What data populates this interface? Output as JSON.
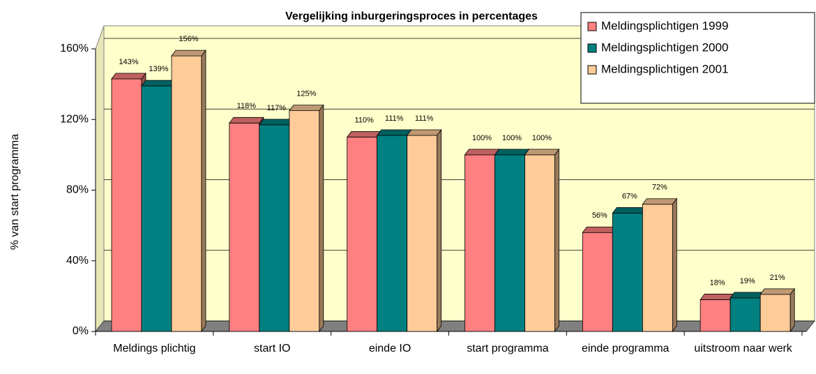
{
  "chart_data": {
    "type": "bar3d",
    "title": "Vergelijking inburgeringsproces in percentages",
    "y_label": "% van start programma",
    "categories": [
      "Meldings plichtig",
      "start IO",
      "einde IO",
      "start programma",
      "einde programma",
      "uitstroom naar werk"
    ],
    "series": [
      {
        "name": "Meldingsplichtigen 1999",
        "color": "#ff8080",
        "values": [
          143,
          118,
          110,
          100,
          56,
          18
        ],
        "value_labels": [
          "143%",
          "118%",
          "110%",
          "100%",
          "56%",
          "18%"
        ]
      },
      {
        "name": "Meldingsplichtigen 2000",
        "color": "#008080",
        "values": [
          139,
          117,
          111,
          100,
          67,
          19
        ],
        "value_labels": [
          "139%",
          "117%",
          "111%",
          "100%",
          "67%",
          "19%"
        ]
      },
      {
        "name": "Meldingsplichtigen 2001",
        "color": "#ffcc99",
        "values": [
          156,
          125,
          111,
          100,
          72,
          21
        ],
        "value_labels": [
          "156%",
          "125%",
          "111%",
          "100%",
          "72%",
          "21%"
        ]
      }
    ],
    "ylim": [
      0,
      160
    ],
    "yticks": [
      {
        "value": 0,
        "label": "0%"
      },
      {
        "value": 40,
        "label": "40%"
      },
      {
        "value": 80,
        "label": "80%"
      },
      {
        "value": 120,
        "label": "120%"
      },
      {
        "value": 160,
        "label": "160%"
      }
    ],
    "grid": true,
    "legend": "upper right"
  }
}
